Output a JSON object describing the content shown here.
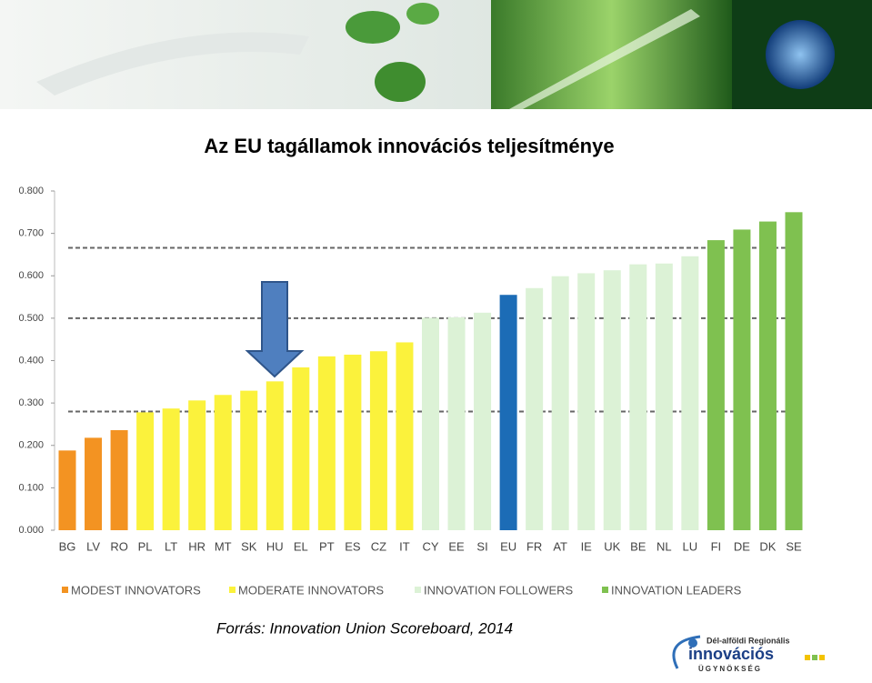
{
  "chart_data": {
    "type": "bar",
    "title": "Az EU tagállamok innovációs teljesítménye",
    "categories": [
      "BG",
      "LV",
      "RO",
      "PL",
      "LT",
      "HR",
      "MT",
      "SK",
      "HU",
      "EL",
      "PT",
      "ES",
      "CZ",
      "IT",
      "CY",
      "EE",
      "SI",
      "EU",
      "FR",
      "AT",
      "IE",
      "UK",
      "BE",
      "NL",
      "LU",
      "FI",
      "DE",
      "DK",
      "SE"
    ],
    "values": [
      0.188,
      0.218,
      0.236,
      0.278,
      0.287,
      0.306,
      0.319,
      0.329,
      0.351,
      0.384,
      0.41,
      0.414,
      0.422,
      0.443,
      0.501,
      0.502,
      0.513,
      0.555,
      0.571,
      0.599,
      0.606,
      0.613,
      0.627,
      0.629,
      0.646,
      0.684,
      0.709,
      0.728,
      0.75
    ],
    "colors": [
      "#f39322",
      "#f39322",
      "#f39322",
      "#fbf23c",
      "#fbf23c",
      "#fbf23c",
      "#fbf23c",
      "#fbf23c",
      "#fbf23c",
      "#fbf23c",
      "#fbf23c",
      "#fbf23c",
      "#fbf23c",
      "#fbf23c",
      "#dcf2d6",
      "#dcf2d6",
      "#dcf2d6",
      "#1c6cb6",
      "#dcf2d6",
      "#dcf2d6",
      "#dcf2d6",
      "#dcf2d6",
      "#dcf2d6",
      "#dcf2d6",
      "#dcf2d6",
      "#7fc150",
      "#7fc150",
      "#7fc150",
      "#7fc150"
    ],
    "ylim": [
      0,
      0.8
    ],
    "yticks": [
      {
        "value": 0,
        "label": "0.000"
      },
      {
        "value": 0.1,
        "label": "0.100"
      },
      {
        "value": 0.2,
        "label": "0.200"
      },
      {
        "value": 0.3,
        "label": "0.300"
      },
      {
        "value": 0.4,
        "label": "0.400"
      },
      {
        "value": 0.5,
        "label": "0.500"
      },
      {
        "value": 0.6,
        "label": "0.600"
      },
      {
        "value": 0.7,
        "label": "0.700"
      },
      {
        "value": 0.8,
        "label": "0.800"
      }
    ],
    "reference_lines": [
      0.28,
      0.5,
      0.666
    ],
    "legend": [
      {
        "name": "MODEST INNOVATORS",
        "color": "#f39322"
      },
      {
        "name": "MODERATE INNOVATORS",
        "color": "#fbf23c"
      },
      {
        "name": "INNOVATION FOLLOWERS",
        "color": "#dcf2d6"
      },
      {
        "name": "INNOVATION LEADERS",
        "color": "#7fc150"
      }
    ]
  },
  "source": "Forrás: Innovation Union Scoreboard, 2014",
  "logo": {
    "line1": "Dél-alföldi Regionális",
    "line2": "innovációs",
    "line3": "ÜGYNÖKSÉG"
  }
}
